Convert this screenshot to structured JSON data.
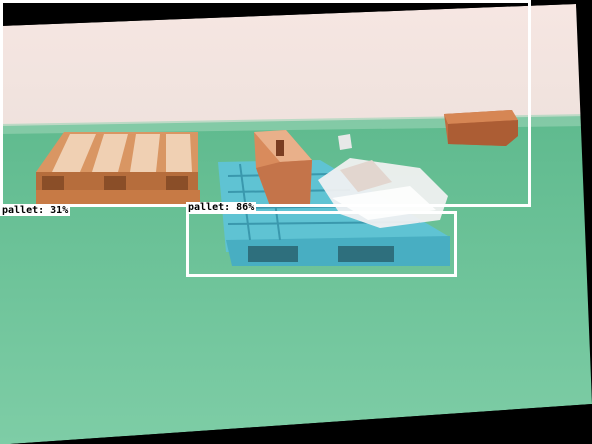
{
  "detections": [
    {
      "label": "pallet: 31%"
    },
    {
      "label": "pallet: 86%"
    }
  ],
  "colors": {
    "box_outline": "#ffffff",
    "label_bg": "#ffffff",
    "label_text": "#000000",
    "wall": "#f2e3e0",
    "floor": "#6fc49a",
    "wood_pallet": "#d58a55",
    "plastic_pallet": "#54b7c9"
  }
}
